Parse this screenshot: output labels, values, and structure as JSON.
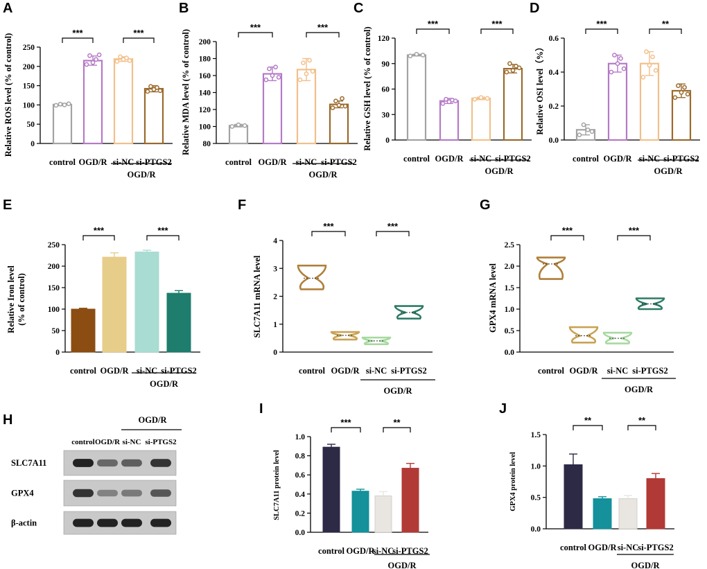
{
  "figure": {
    "group_label": "OGD/R",
    "charts": [
      {
        "panel": "A",
        "type": "bar",
        "style": "outline",
        "categories": [
          "control",
          "OGD/R",
          "si-NC",
          "si-PTGS2"
        ],
        "values": [
          101,
          215,
          219,
          142
        ],
        "errors": [
          3,
          12,
          6,
          8
        ],
        "points": [
          [
            99,
            102,
            100,
            103
          ],
          [
            205,
            228,
            210,
            218,
            230
          ],
          [
            213,
            225,
            218,
            222,
            215
          ],
          [
            135,
            148,
            140,
            145,
            137
          ]
        ],
        "colors": [
          "#a3a3a3",
          "#b57ac7",
          "#f2c08b",
          "#9a6a2c"
        ],
        "ylabel": "Relative ROS level (% of control)",
        "yticks": [
          "0",
          "50",
          "100",
          "150",
          "200",
          "250"
        ],
        "ylim": [
          0,
          250
        ],
        "sig": [
          {
            "a": 0,
            "b": 1,
            "text": "***"
          },
          {
            "a": 2,
            "b": 3,
            "text": "***"
          }
        ]
      },
      {
        "panel": "B",
        "type": "bar",
        "style": "outline",
        "categories": [
          "control",
          "OGD/R",
          "si-NC",
          "si-PTGS2"
        ],
        "values": [
          101,
          162,
          167,
          126
        ],
        "errors": [
          1.5,
          8,
          13,
          4
        ],
        "points": [
          [
            100,
            102,
            101
          ],
          [
            155,
            168,
            160,
            170,
            158
          ],
          [
            155,
            175,
            162,
            178,
            165
          ],
          [
            122,
            130,
            125,
            133,
            124
          ]
        ],
        "colors": [
          "#a3a3a3",
          "#b57ac7",
          "#f2c08b",
          "#9a6a2c"
        ],
        "ylabel": "Relative MDA level  (% of control)",
        "yticks": [
          "80",
          "100",
          "120",
          "140",
          "160",
          "180",
          "200"
        ],
        "ylim": [
          80,
          200
        ],
        "sig": [
          {
            "a": 0,
            "b": 1,
            "text": "***"
          },
          {
            "a": 2,
            "b": 3,
            "text": "***"
          }
        ]
      },
      {
        "panel": "C",
        "type": "bar",
        "style": "outline",
        "categories": [
          "control",
          "OGD/R",
          "si-NC",
          "si-PTGS2"
        ],
        "values": [
          100,
          46,
          49,
          84
        ],
        "errors": [
          1,
          3,
          1.5,
          5
        ],
        "points": [
          [
            99,
            101,
            100
          ],
          [
            43,
            48,
            45,
            47,
            46
          ],
          [
            48,
            50,
            49
          ],
          [
            80,
            90,
            82,
            87,
            85
          ]
        ],
        "colors": [
          "#a3a3a3",
          "#b57ac7",
          "#f2c08b",
          "#9a6a2c"
        ],
        "ylabel": "Relative GSH level  (% of control)",
        "yticks": [
          "0",
          "30",
          "60",
          "90",
          "120"
        ],
        "ylim": [
          0,
          120
        ],
        "sig": [
          {
            "a": 0,
            "b": 1,
            "text": "***"
          },
          {
            "a": 2,
            "b": 3,
            "text": "***"
          }
        ]
      },
      {
        "panel": "D",
        "type": "bar",
        "style": "outline",
        "categories": [
          "control",
          "OGD/R",
          "si-NC",
          "si-PTGS2"
        ],
        "values": [
          0.06,
          0.45,
          0.45,
          0.29
        ],
        "errors": [
          0.03,
          0.05,
          0.07,
          0.04
        ],
        "points": [
          [
            0.03,
            0.09,
            0.06,
            0.05
          ],
          [
            0.4,
            0.5,
            0.45,
            0.48,
            0.42
          ],
          [
            0.37,
            0.52,
            0.44,
            0.49,
            0.41
          ],
          [
            0.25,
            0.32,
            0.28,
            0.31,
            0.27
          ]
        ],
        "colors": [
          "#a3a3a3",
          "#b57ac7",
          "#f2c08b",
          "#9a6a2c"
        ],
        "ylabel": "Relative OSI level（%）",
        "yticks": [
          "0.0",
          "0.2",
          "0.4",
          "0.6"
        ],
        "ylim": [
          0,
          0.6
        ],
        "sig": [
          {
            "a": 0,
            "b": 1,
            "text": "***"
          },
          {
            "a": 2,
            "b": 3,
            "text": "**"
          }
        ]
      },
      {
        "panel": "E",
        "type": "bar",
        "style": "filled",
        "categories": [
          "control",
          "OGD/R",
          "si-NC",
          "si-PTGS2"
        ],
        "values": [
          100,
          221,
          233,
          137
        ],
        "errors": [
          2,
          10,
          4,
          6
        ],
        "colors": [
          "#8b4d12",
          "#e7cd8a",
          "#a9dcd3",
          "#1e7d6c"
        ],
        "ylabel": "Relative Iron level\n(% of control)",
        "yticks": [
          "0",
          "50",
          "100",
          "150",
          "200",
          "250"
        ],
        "ylim": [
          0,
          250
        ],
        "sig": [
          {
            "a": 0,
            "b": 1,
            "text": "***"
          },
          {
            "a": 2,
            "b": 3,
            "text": "***"
          }
        ]
      },
      {
        "panel": "F",
        "type": "violin",
        "categories": [
          "control",
          "OGD/R",
          "si-NC",
          "si-PTGS2"
        ],
        "ranges": [
          [
            2.25,
            3.1,
            2.65
          ],
          [
            0.45,
            0.72,
            0.6
          ],
          [
            0.28,
            0.52,
            0.4
          ],
          [
            1.2,
            1.65,
            1.42
          ]
        ],
        "colors": [
          "#b07f3a",
          "#c9a253",
          "#a7d9a0",
          "#2e7a66"
        ],
        "ylabel": "SLC7A11 mRNA level",
        "yticks": [
          "0",
          "1",
          "2",
          "3",
          "4"
        ],
        "ylim": [
          0,
          4
        ],
        "sig": [
          {
            "a": 0,
            "b": 1,
            "text": "***"
          },
          {
            "a": 2,
            "b": 3,
            "text": "***"
          }
        ]
      },
      {
        "panel": "G",
        "type": "violin",
        "categories": [
          "control",
          "OGD/R",
          "si-NC",
          "si-PTGS2"
        ],
        "ranges": [
          [
            1.7,
            2.2,
            2.05
          ],
          [
            0.22,
            0.58,
            0.38
          ],
          [
            0.2,
            0.45,
            0.32
          ],
          [
            1.0,
            1.25,
            1.12
          ]
        ],
        "colors": [
          "#b07f3a",
          "#c9a253",
          "#a7d9a0",
          "#2e7a66"
        ],
        "ylabel": "GPX4 mRNA level",
        "yticks": [
          "0.0",
          "0.5",
          "1.0",
          "1.5",
          "2.0",
          "2.5"
        ],
        "ylim": [
          0,
          2.5
        ],
        "sig": [
          {
            "a": 0,
            "b": 1,
            "text": "***"
          },
          {
            "a": 2,
            "b": 3,
            "text": "***"
          }
        ]
      },
      {
        "panel": "I",
        "type": "bar",
        "style": "filled",
        "categories": [
          "control",
          "OGD/R",
          "si-NC",
          "si-PTGS2"
        ],
        "values": [
          0.89,
          0.43,
          0.38,
          0.67
        ],
        "errors": [
          0.03,
          0.02,
          0.045,
          0.05
        ],
        "colors": [
          "#2d2a46",
          "#14919b",
          "#e9e6e2",
          "#b23a36"
        ],
        "ylabel": "SLC7A11 protein level",
        "yticks": [
          "0.0",
          "0.2",
          "0.4",
          "0.6",
          "0.8",
          "1.0"
        ],
        "ylim": [
          0,
          1.0
        ],
        "sig": [
          {
            "a": 0,
            "b": 1,
            "text": "***"
          },
          {
            "a": 2,
            "b": 3,
            "text": "**"
          }
        ]
      },
      {
        "panel": "J",
        "type": "bar",
        "style": "filled",
        "categories": [
          "control",
          "OGD/R",
          "si-NC",
          "si-PTGS2"
        ],
        "values": [
          1.02,
          0.48,
          0.48,
          0.8
        ],
        "errors": [
          0.17,
          0.03,
          0.05,
          0.08
        ],
        "colors": [
          "#2d2a46",
          "#14919b",
          "#e9e6e2",
          "#b23a36"
        ],
        "ylabel": "GPX4 protein level",
        "yticks": [
          "0.0",
          "0.5",
          "1.0",
          "1.5"
        ],
        "ylim": [
          0,
          1.5
        ],
        "sig": [
          {
            "a": 0,
            "b": 1,
            "text": "**"
          },
          {
            "a": 2,
            "b": 3,
            "text": "**"
          }
        ]
      }
    ],
    "blot": {
      "panel": "H",
      "group_label": "OGD/R",
      "columns": [
        "control",
        "OGD/R",
        "si-NC",
        "si-PTGS2"
      ],
      "rows": [
        {
          "label": "SLC7A11",
          "intensity": [
            0.95,
            0.55,
            0.6,
            0.85
          ]
        },
        {
          "label": "GPX4",
          "intensity": [
            0.85,
            0.4,
            0.45,
            0.65
          ]
        },
        {
          "label": "β-actin",
          "intensity": [
            0.95,
            0.95,
            0.95,
            0.95
          ]
        }
      ]
    }
  }
}
